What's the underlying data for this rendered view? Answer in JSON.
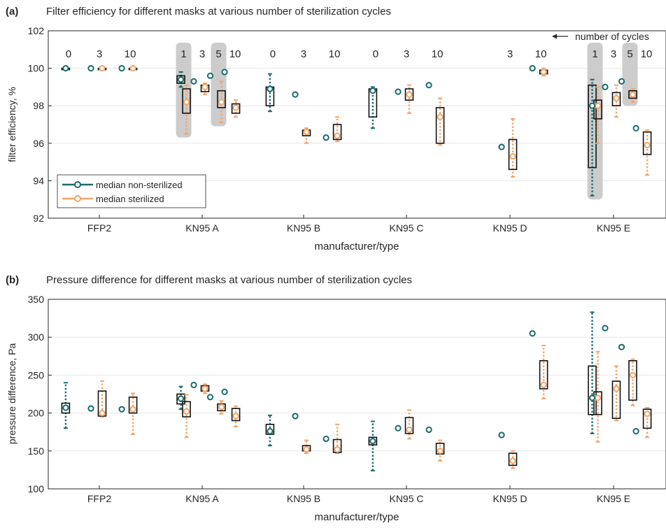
{
  "chart_data": [
    {
      "type": "box",
      "panel_label": "(a)",
      "title": "Filter efficiency for different masks at various number of sterilization cycles",
      "xlabel": "manufacturer/type",
      "ylabel": "filter efficiency, %",
      "ylim": [
        92,
        102
      ],
      "yticks": [
        "92",
        "94",
        "96",
        "98",
        "100",
        "102"
      ],
      "grid": "horizontal",
      "categories": [
        "FFP2",
        "KN95 A",
        "KN95 B",
        "KN95 C",
        "KN95 D",
        "KN95 E"
      ],
      "cycles_annotation": "number of cycles",
      "legend": {
        "position": "lower-left",
        "items": [
          {
            "label": "median non-sterilized",
            "color": "#1a6b6b"
          },
          {
            "label": "median sterilized",
            "color": "#f4a46a"
          }
        ]
      },
      "cycle_labels": [
        {
          "mask": "FFP2",
          "text": "0",
          "x": -0.3
        },
        {
          "mask": "FFP2",
          "text": "3",
          "x": 0
        },
        {
          "mask": "FFP2",
          "text": "10",
          "x": 0.3
        },
        {
          "mask": "KN95 A",
          "text": "1",
          "x": -0.18,
          "highlight": true
        },
        {
          "mask": "KN95 A",
          "text": "3",
          "x": 0
        },
        {
          "mask": "KN95 A",
          "text": "5",
          "x": 0.16,
          "highlight": true
        },
        {
          "mask": "KN95 A",
          "text": "10",
          "x": 0.32
        },
        {
          "mask": "KN95 B",
          "text": "0",
          "x": -0.3
        },
        {
          "mask": "KN95 B",
          "text": "3",
          "x": 0
        },
        {
          "mask": "KN95 B",
          "text": "10",
          "x": 0.3
        },
        {
          "mask": "KN95 C",
          "text": "0",
          "x": -0.3
        },
        {
          "mask": "KN95 C",
          "text": "3",
          "x": 0
        },
        {
          "mask": "KN95 C",
          "text": "10",
          "x": 0.3
        },
        {
          "mask": "KN95 D",
          "text": "3",
          "x": 0
        },
        {
          "mask": "KN95 D",
          "text": "10",
          "x": 0.3
        },
        {
          "mask": "KN95 E",
          "text": "1",
          "x": -0.18,
          "highlight": true
        },
        {
          "mask": "KN95 E",
          "text": "3",
          "x": 0
        },
        {
          "mask": "KN95 E",
          "text": "5",
          "x": 0.16,
          "highlight": true
        },
        {
          "mask": "KN95 E",
          "text": "10",
          "x": 0.32
        }
      ],
      "groups": [
        {
          "mask": "FFP2",
          "cycle": "0",
          "median_ns": 100.0,
          "ns": {
            "q1": 99.98,
            "q3": 100.0,
            "wl": 99.95,
            "wh": 100.0
          },
          "median_s": null,
          "s": null
        },
        {
          "mask": "FFP2",
          "cycle": "3",
          "median_ns": 100.0,
          "ns": null,
          "median_s": 100.0,
          "s": {
            "q1": 99.98,
            "q3": 100.0,
            "wl": 99.95,
            "wh": 100.0
          }
        },
        {
          "mask": "FFP2",
          "cycle": "10",
          "median_ns": 100.0,
          "ns": null,
          "median_s": 100.0,
          "s": {
            "q1": 99.98,
            "q3": 100.0,
            "wl": 99.95,
            "wh": 100.0
          }
        },
        {
          "mask": "KN95 A",
          "cycle": "1",
          "median_ns": 99.4,
          "ns": {
            "q1": 99.2,
            "q3": 99.6,
            "wl": 99.0,
            "wh": 99.8
          },
          "median_s": 98.2,
          "s": {
            "q1": 97.6,
            "q3": 98.9,
            "wl": 96.5,
            "wh": 99.1
          }
        },
        {
          "mask": "KN95 A",
          "cycle": "3",
          "median_ns": 99.3,
          "ns": null,
          "median_s": 99.0,
          "s": {
            "q1": 98.75,
            "q3": 99.1,
            "wl": 98.6,
            "wh": 99.2
          }
        },
        {
          "mask": "KN95 A",
          "cycle": "5",
          "median_ns": 99.6,
          "ns": null,
          "median_s": 98.2,
          "s": {
            "q1": 97.9,
            "q3": 98.8,
            "wl": 97.1,
            "wh": 99.3
          }
        },
        {
          "mask": "KN95 A",
          "cycle": "10",
          "median_ns": 99.8,
          "ns": null,
          "median_s": 97.9,
          "s": {
            "q1": 97.6,
            "q3": 98.1,
            "wl": 97.4,
            "wh": 98.3
          }
        },
        {
          "mask": "KN95 B",
          "cycle": "0",
          "median_ns": 98.9,
          "ns": {
            "q1": 98.0,
            "q3": 99.0,
            "wl": 97.7,
            "wh": 99.7
          },
          "median_s": null,
          "s": null
        },
        {
          "mask": "KN95 B",
          "cycle": "3",
          "median_ns": 98.6,
          "ns": null,
          "median_s": 96.6,
          "s": {
            "q1": 96.4,
            "q3": 96.7,
            "wl": 96.0,
            "wh": 96.8
          }
        },
        {
          "mask": "KN95 B",
          "cycle": "10",
          "median_ns": 96.3,
          "ns": null,
          "median_s": 96.4,
          "s": {
            "q1": 96.2,
            "q3": 97.0,
            "wl": 96.1,
            "wh": 97.4
          }
        },
        {
          "mask": "KN95 C",
          "cycle": "0",
          "median_ns": 98.8,
          "ns": {
            "q1": 97.4,
            "q3": 98.9,
            "wl": 96.8,
            "wh": 99.0
          },
          "median_s": null,
          "s": null
        },
        {
          "mask": "KN95 C",
          "cycle": "3",
          "median_ns": 98.75,
          "ns": null,
          "median_s": 98.6,
          "s": {
            "q1": 98.3,
            "q3": 98.9,
            "wl": 97.6,
            "wh": 99.1
          }
        },
        {
          "mask": "KN95 C",
          "cycle": "10",
          "median_ns": 99.1,
          "ns": null,
          "median_s": 97.4,
          "s": {
            "q1": 96.0,
            "q3": 97.9,
            "wl": 95.9,
            "wh": 98.4
          }
        },
        {
          "mask": "KN95 D",
          "cycle": "3",
          "median_ns": 95.8,
          "ns": null,
          "median_s": 95.3,
          "s": {
            "q1": 94.6,
            "q3": 96.2,
            "wl": 94.2,
            "wh": 97.3
          }
        },
        {
          "mask": "KN95 D",
          "cycle": "10",
          "median_ns": 100.0,
          "ns": null,
          "median_s": 99.8,
          "s": {
            "q1": 99.7,
            "q3": 99.9,
            "wl": 99.6,
            "wh": 100.0
          }
        },
        {
          "mask": "KN95 E",
          "cycle": "1",
          "median_ns": 98.0,
          "ns": {
            "q1": 94.7,
            "q3": 99.1,
            "wl": 93.2,
            "wh": 99.4
          },
          "median_s": 98.0,
          "s": {
            "q1": 97.3,
            "q3": 98.3,
            "wl": 96.0,
            "wh": 99.0
          }
        },
        {
          "mask": "KN95 E",
          "cycle": "3",
          "median_ns": 99.0,
          "ns": null,
          "median_s": 98.4,
          "s": {
            "q1": 98.0,
            "q3": 98.7,
            "wl": 97.4,
            "wh": 99.1
          }
        },
        {
          "mask": "KN95 E",
          "cycle": "5",
          "median_ns": 99.3,
          "ns": null,
          "median_s": 98.6,
          "s": {
            "q1": 98.4,
            "q3": 98.8,
            "wl": 98.2,
            "wh": 98.9
          }
        },
        {
          "mask": "KN95 E",
          "cycle": "10",
          "median_ns": 96.8,
          "ns": null,
          "median_s": 95.9,
          "s": {
            "q1": 95.4,
            "q3": 96.6,
            "wl": 94.3,
            "wh": 96.7
          }
        }
      ]
    },
    {
      "type": "box",
      "panel_label": "(b)",
      "title": "Pressure difference for different masks at various number of sterilization cycles",
      "xlabel": "manufacturer/type",
      "ylabel": "pressure difference, Pa",
      "ylim": [
        100,
        350
      ],
      "yticks": [
        "100",
        "150",
        "200",
        "250",
        "300",
        "350"
      ],
      "grid": "horizontal",
      "categories": [
        "FFP2",
        "KN95 A",
        "KN95 B",
        "KN95 C",
        "KN95 D",
        "KN95 E"
      ],
      "groups": [
        {
          "mask": "FFP2",
          "cycle": "0",
          "median_ns": 207,
          "ns": {
            "q1": 200,
            "q3": 213,
            "wl": 180,
            "wh": 240
          },
          "median_s": null,
          "s": null
        },
        {
          "mask": "FFP2",
          "cycle": "3",
          "median_ns": 206,
          "ns": null,
          "median_s": 200,
          "s": {
            "q1": 196,
            "q3": 229,
            "wl": 195,
            "wh": 242
          }
        },
        {
          "mask": "FFP2",
          "cycle": "10",
          "median_ns": 205,
          "ns": null,
          "median_s": 205,
          "s": {
            "q1": 200,
            "q3": 221,
            "wl": 172,
            "wh": 226
          }
        },
        {
          "mask": "KN95 A",
          "cycle": "1",
          "median_ns": 219,
          "ns": {
            "q1": 212,
            "q3": 225,
            "wl": 205,
            "wh": 235
          },
          "median_s": 202,
          "s": {
            "q1": 195,
            "q3": 215,
            "wl": 168,
            "wh": 224
          }
        },
        {
          "mask": "KN95 A",
          "cycle": "3",
          "median_ns": 237,
          "ns": null,
          "median_s": 232,
          "s": {
            "q1": 229,
            "q3": 236,
            "wl": 226,
            "wh": 238
          }
        },
        {
          "mask": "KN95 A",
          "cycle": "5",
          "median_ns": 221,
          "ns": null,
          "median_s": 208,
          "s": {
            "q1": 203,
            "q3": 212,
            "wl": 199,
            "wh": 216
          }
        },
        {
          "mask": "KN95 A",
          "cycle": "10",
          "median_ns": 228,
          "ns": null,
          "median_s": 196,
          "s": {
            "q1": 190,
            "q3": 206,
            "wl": 182,
            "wh": 209
          }
        },
        {
          "mask": "KN95 B",
          "cycle": "0",
          "median_ns": 176,
          "ns": {
            "q1": 172,
            "q3": 185,
            "wl": 157,
            "wh": 197
          },
          "median_s": null,
          "s": null
        },
        {
          "mask": "KN95 B",
          "cycle": "3",
          "median_ns": 196,
          "ns": null,
          "median_s": 152,
          "s": {
            "q1": 150,
            "q3": 157,
            "wl": 147,
            "wh": 164
          }
        },
        {
          "mask": "KN95 B",
          "cycle": "10",
          "median_ns": 166,
          "ns": null,
          "median_s": 152,
          "s": {
            "q1": 148,
            "q3": 165,
            "wl": 147,
            "wh": 185
          }
        },
        {
          "mask": "KN95 C",
          "cycle": "0",
          "median_ns": 163,
          "ns": {
            "q1": 158,
            "q3": 168,
            "wl": 124,
            "wh": 189
          },
          "median_s": null,
          "s": null
        },
        {
          "mask": "KN95 C",
          "cycle": "3",
          "median_ns": 180,
          "ns": null,
          "median_s": 178,
          "s": {
            "q1": 173,
            "q3": 194,
            "wl": 166,
            "wh": 204
          }
        },
        {
          "mask": "KN95 C",
          "cycle": "10",
          "median_ns": 178,
          "ns": null,
          "median_s": 150,
          "s": {
            "q1": 146,
            "q3": 160,
            "wl": 137,
            "wh": 164
          }
        },
        {
          "mask": "KN95 D",
          "cycle": "3",
          "median_ns": 171,
          "ns": null,
          "median_s": 137,
          "s": {
            "q1": 131,
            "q3": 147,
            "wl": 127,
            "wh": 150
          }
        },
        {
          "mask": "KN95 D",
          "cycle": "10",
          "median_ns": 305,
          "ns": null,
          "median_s": 237,
          "s": {
            "q1": 232,
            "q3": 269,
            "wl": 219,
            "wh": 289
          }
        },
        {
          "mask": "KN95 E",
          "cycle": "1",
          "median_ns": 220,
          "ns": {
            "q1": 198,
            "q3": 262,
            "wl": 173,
            "wh": 333
          },
          "median_s": 220,
          "s": {
            "q1": 198,
            "q3": 228,
            "wl": 162,
            "wh": 281
          }
        },
        {
          "mask": "KN95 E",
          "cycle": "3",
          "median_ns": 312,
          "ns": null,
          "median_s": 232,
          "s": {
            "q1": 193,
            "q3": 242,
            "wl": 190,
            "wh": 262
          }
        },
        {
          "mask": "KN95 E",
          "cycle": "5",
          "median_ns": 287,
          "ns": null,
          "median_s": 250,
          "s": {
            "q1": 217,
            "q3": 269,
            "wl": 210,
            "wh": 271
          }
        },
        {
          "mask": "KN95 E",
          "cycle": "10",
          "median_ns": 176,
          "ns": null,
          "median_s": 199,
          "s": {
            "q1": 180,
            "q3": 205,
            "wl": 168,
            "wh": 207
          }
        }
      ]
    }
  ],
  "colors": {
    "non_sterilized": "#1a6b6b",
    "sterilized": "#f4a46a",
    "highlight": "#cccccc",
    "grid": "#e6e6e6"
  }
}
